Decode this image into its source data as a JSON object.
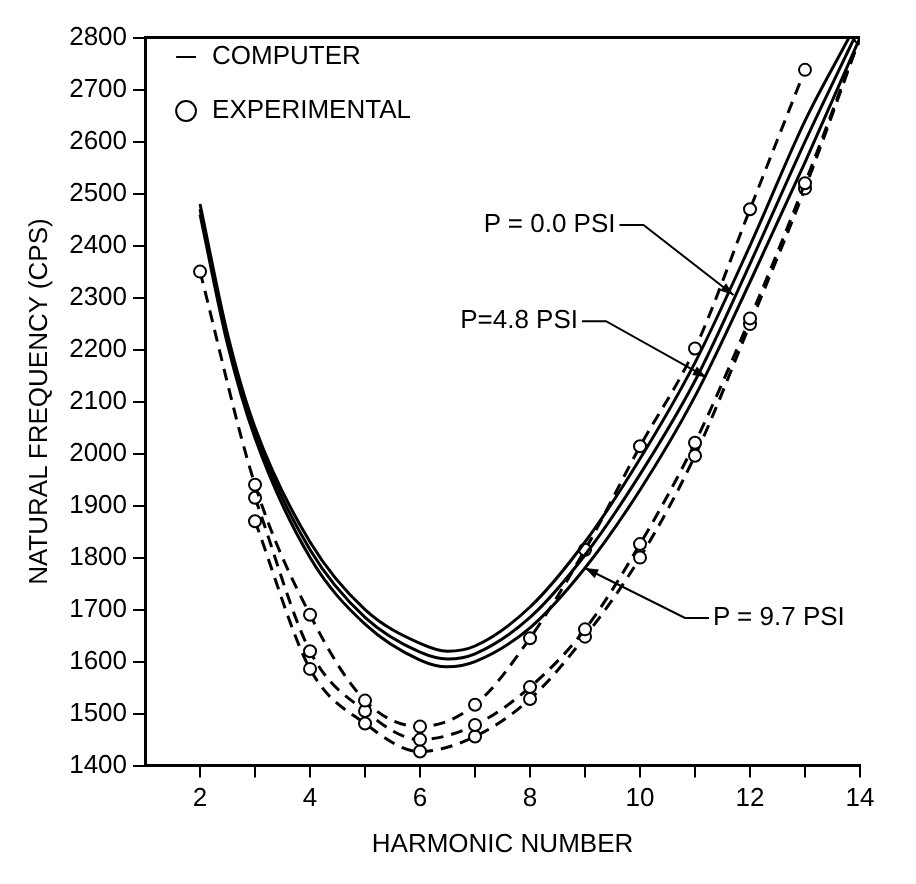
{
  "chart_data": {
    "type": "line",
    "xlabel": "HARMONIC NUMBER",
    "ylabel": "NATURAL FREQUENCY (CPS)",
    "xlim": [
      1,
      14
    ],
    "xticks": [
      2,
      {
        "value": 3,
        "label": null
      },
      4,
      {
        "value": 5,
        "label": null
      },
      6,
      {
        "value": 7,
        "label": null
      },
      8,
      {
        "value": 9,
        "label": null
      },
      10,
      {
        "value": 11,
        "label": null
      },
      12,
      {
        "value": 13,
        "label": null
      },
      14
    ],
    "ylim": [
      1400,
      2800
    ],
    "yticks": [
      1400,
      1500,
      1600,
      1700,
      1800,
      1900,
      2000,
      2100,
      2200,
      2300,
      2400,
      2500,
      2600,
      2700,
      2800
    ],
    "grid": false,
    "legend": "top left",
    "series": [
      {
        "name": "COMPUTER",
        "color": "#000000",
        "marker": "none",
        "line_style": "solid",
        "x": [
          2,
          2.5,
          3,
          4,
          5,
          6,
          6.5,
          7,
          8,
          9,
          10,
          11,
          12,
          13,
          13.8
        ],
        "values": [
          2480,
          2230,
          2050,
          1830,
          1700,
          1635,
          1620,
          1630,
          1705,
          1830,
          1990,
          2175,
          2400,
          2640,
          2800
        ]
      },
      {
        "color": "#000000",
        "marker": "none",
        "line_style": "solid",
        "x": [
          2,
          2.5,
          3,
          4,
          5,
          6,
          6.5,
          7,
          8,
          9,
          10,
          11,
          12,
          13,
          13.9
        ],
        "values": [
          2470,
          2220,
          2040,
          1815,
          1685,
          1618,
          1605,
          1615,
          1685,
          1805,
          1960,
          2140,
          2365,
          2600,
          2800
        ]
      },
      {
        "color": "#000000",
        "marker": "none",
        "line_style": "solid",
        "x": [
          2,
          2.5,
          3,
          4,
          5,
          6,
          6.5,
          7,
          8,
          9,
          10,
          11,
          12,
          13,
          14
        ],
        "values": [
          2460,
          2210,
          2030,
          1800,
          1672,
          1603,
          1590,
          1600,
          1665,
          1780,
          1930,
          2110,
          2330,
          2560,
          2800
        ]
      },
      {
        "name": "EXPERIMENTAL",
        "color": "#000000",
        "marker": "circle",
        "line_style": "dashed",
        "x": [
          2,
          3,
          4,
          5,
          6,
          7,
          8,
          9,
          10,
          11,
          12,
          13
        ],
        "values": [
          2350,
          1940,
          1690,
          1525,
          1475,
          1517,
          1645,
          1815,
          2014,
          2202,
          2470,
          2738
        ]
      },
      {
        "color": "#000000",
        "marker": "circle",
        "line_style": "dashed",
        "x": [
          3,
          4,
          5,
          6,
          7,
          8,
          9,
          10,
          11,
          12,
          13,
          14
        ],
        "values": [
          1915,
          1620,
          1505,
          1450,
          1478,
          1551,
          1662,
          1826,
          2021,
          2260,
          2520,
          2800
        ]
      },
      {
        "color": "#000000",
        "marker": "circle",
        "line_style": "dashed",
        "x": [
          3,
          4,
          5,
          6,
          7,
          8,
          9,
          10,
          11,
          12,
          13,
          14
        ],
        "values": [
          1870,
          1586,
          1481,
          1427,
          1456,
          1528,
          1648,
          1800,
          1996,
          2249,
          2510,
          2800
        ]
      }
    ],
    "annotations": [
      {
        "text": "P = 0.0 PSI",
        "x": 11.7,
        "y": 2305
      },
      {
        "text": "P=4.8 PSI",
        "x": 11.2,
        "y": 2147
      },
      {
        "text": "P = 9.7 PSI",
        "x": 9,
        "y": 1780
      }
    ]
  }
}
